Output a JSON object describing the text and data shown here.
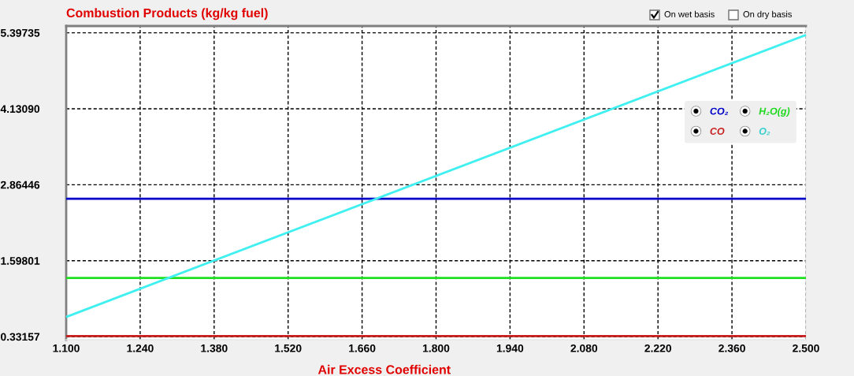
{
  "chart_data": {
    "type": "line",
    "title": "Combustion Products (kg/kg fuel)",
    "xlabel": "Air Excess Coefficient",
    "annotations": [
      "On wet basis",
      "On dry basis"
    ],
    "x": [
      1.1,
      2.5
    ],
    "series": [
      {
        "name": "CO₂",
        "color": "#0000c8",
        "values": [
          2.63,
          2.63
        ]
      },
      {
        "name": "H₂O(g)",
        "color": "#1ee01e",
        "values": [
          1.31,
          1.31
        ]
      },
      {
        "name": "CO",
        "color": "#c81e1e",
        "values": [
          0.34,
          0.34
        ]
      },
      {
        "name": "O₂",
        "color": "#40f0f0",
        "values": [
          0.66,
          5.36
        ]
      }
    ],
    "xlim": [
      1.1,
      2.5
    ],
    "xticks": [
      {
        "value": 1.1,
        "label": "1.100"
      },
      {
        "value": 1.24,
        "label": "1.240"
      },
      {
        "value": 1.38,
        "label": "1.380"
      },
      {
        "value": 1.52,
        "label": "1.520"
      },
      {
        "value": 1.66,
        "label": "1.660"
      },
      {
        "value": 1.8,
        "label": "1.800"
      },
      {
        "value": 1.94,
        "label": "1.940"
      },
      {
        "value": 2.08,
        "label": "2.080"
      },
      {
        "value": 2.22,
        "label": "2.220"
      },
      {
        "value": 2.36,
        "label": "2.360"
      },
      {
        "value": 2.5,
        "label": "2.500"
      }
    ],
    "ylim": [
      0.28,
      5.51
    ],
    "yticks": [
      0.33157,
      1.59801,
      2.86446,
      {
        "value": 4.1309,
        "label": "4.13090"
      },
      5.39735
    ],
    "grid": true,
    "legend": "right",
    "marker": "none",
    "line_style": "solid"
  }
}
